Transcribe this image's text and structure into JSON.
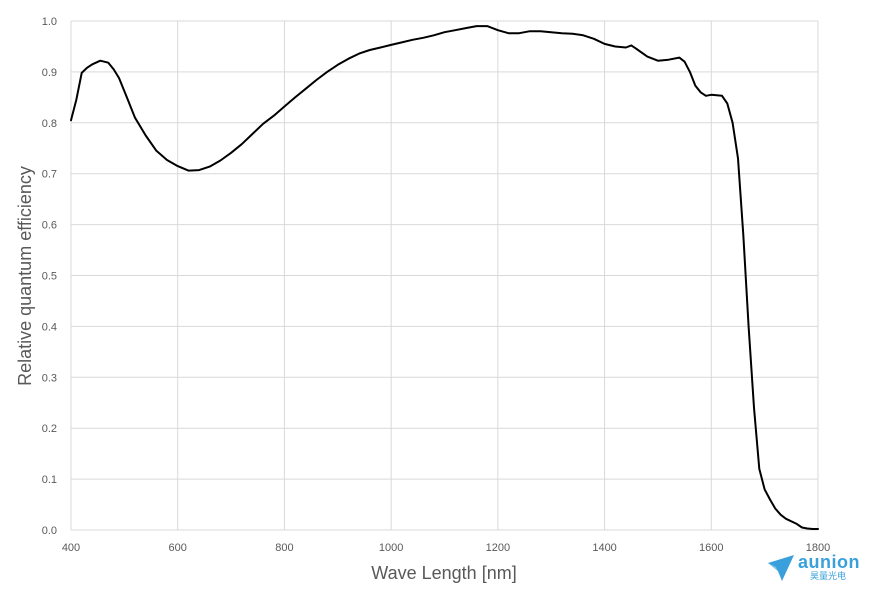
{
  "chart_data": {
    "type": "line",
    "title": "",
    "xlabel": "Wave Length [nm]",
    "ylabel": "Relative quantum efficiency",
    "xlim": [
      400,
      1800
    ],
    "ylim": [
      0.0,
      1.0
    ],
    "x_ticks": [
      400,
      600,
      800,
      1000,
      1200,
      1400,
      1600,
      1800
    ],
    "y_ticks": [
      "0.0",
      "0.1",
      "0.2",
      "0.3",
      "0.4",
      "0.5",
      "0.6",
      "0.7",
      "0.8",
      "0.9",
      "1.0"
    ],
    "grid": true,
    "legend": "none",
    "series": [
      {
        "color": "#000000",
        "x": [
          400,
          410,
          420,
          430,
          440,
          455,
          470,
          480,
          490,
          500,
          520,
          540,
          560,
          580,
          600,
          620,
          640,
          660,
          680,
          700,
          720,
          740,
          760,
          780,
          800,
          820,
          840,
          860,
          880,
          900,
          920,
          940,
          960,
          980,
          1000,
          1020,
          1040,
          1060,
          1080,
          1100,
          1120,
          1140,
          1160,
          1180,
          1200,
          1220,
          1240,
          1260,
          1280,
          1300,
          1320,
          1340,
          1360,
          1380,
          1400,
          1420,
          1440,
          1450,
          1460,
          1480,
          1500,
          1520,
          1540,
          1550,
          1560,
          1570,
          1580,
          1590,
          1600,
          1620,
          1630,
          1640,
          1650,
          1660,
          1670,
          1680,
          1690,
          1700,
          1710,
          1720,
          1730,
          1740,
          1760,
          1770,
          1780,
          1790,
          1800
        ],
        "values": [
          0.805,
          0.845,
          0.898,
          0.908,
          0.915,
          0.922,
          0.918,
          0.905,
          0.888,
          0.862,
          0.81,
          0.775,
          0.745,
          0.727,
          0.715,
          0.706,
          0.707,
          0.714,
          0.726,
          0.741,
          0.758,
          0.778,
          0.798,
          0.814,
          0.832,
          0.85,
          0.867,
          0.884,
          0.9,
          0.914,
          0.926,
          0.936,
          0.943,
          0.948,
          0.953,
          0.958,
          0.963,
          0.967,
          0.972,
          0.978,
          0.982,
          0.986,
          0.99,
          0.99,
          0.982,
          0.976,
          0.976,
          0.98,
          0.98,
          0.978,
          0.976,
          0.975,
          0.972,
          0.965,
          0.955,
          0.95,
          0.948,
          0.952,
          0.945,
          0.93,
          0.922,
          0.924,
          0.928,
          0.92,
          0.9,
          0.873,
          0.86,
          0.853,
          0.855,
          0.853,
          0.838,
          0.8,
          0.73,
          0.58,
          0.4,
          0.24,
          0.12,
          0.08,
          0.06,
          0.042,
          0.03,
          0.022,
          0.012,
          0.005,
          0.003,
          0.002,
          0.002
        ]
      }
    ]
  },
  "logo": {
    "name": "aunion",
    "subtitle": "昊量光电",
    "icon": "paper-plane-logo-icon",
    "color": "#3aa0db"
  }
}
